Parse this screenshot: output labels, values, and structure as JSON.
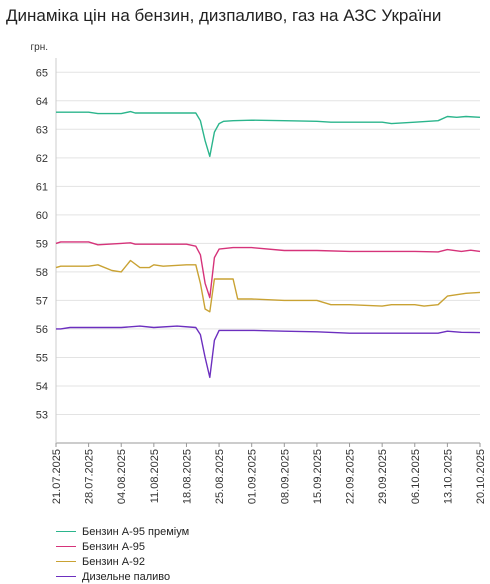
{
  "chart_data": {
    "type": "line",
    "title": "Динаміка цін на бензин, дизпаливо, газ на АЗС України",
    "ylabel": "грн.",
    "ylim": [
      52,
      65.5
    ],
    "yticks": [
      53,
      54,
      55,
      56,
      57,
      58,
      59,
      60,
      61,
      62,
      63,
      64,
      65
    ],
    "x_tick_labels": [
      "21.07.2025",
      "28.07.2025",
      "04.08.2025",
      "11.08.2025",
      "18.08.2025",
      "25.08.2025",
      "01.09.2025",
      "08.09.2025",
      "15.09.2025",
      "22.09.2025",
      "29.09.2025",
      "06.10.2025",
      "13.10.2025",
      "20.10.2025"
    ],
    "x_start": "21.07.2025",
    "x_end": "20.10.2025",
    "grid": "horizontal",
    "legend_position": "bottom-left",
    "series": [
      {
        "name": "Бензин А-95 преміум",
        "color": "#2bb58c",
        "points": [
          [
            "21.07.2025",
            63.6
          ],
          [
            "28.07.2025",
            63.6
          ],
          [
            "30.07.2025",
            63.55
          ],
          [
            "04.08.2025",
            63.55
          ],
          [
            "06.08.2025",
            63.62
          ],
          [
            "07.08.2025",
            63.57
          ],
          [
            "11.08.2025",
            63.57
          ],
          [
            "20.08.2025",
            63.57
          ],
          [
            "21.08.2025",
            63.3
          ],
          [
            "22.08.2025",
            62.6
          ],
          [
            "23.08.2025",
            62.05
          ],
          [
            "24.08.2025",
            62.9
          ],
          [
            "25.08.2025",
            63.2
          ],
          [
            "26.08.2025",
            63.28
          ],
          [
            "28.08.2025",
            63.3
          ],
          [
            "01.09.2025",
            63.32
          ],
          [
            "08.09.2025",
            63.3
          ],
          [
            "15.09.2025",
            63.28
          ],
          [
            "18.09.2025",
            63.25
          ],
          [
            "29.09.2025",
            63.25
          ],
          [
            "01.10.2025",
            63.2
          ],
          [
            "06.10.2025",
            63.25
          ],
          [
            "11.10.2025",
            63.3
          ],
          [
            "13.10.2025",
            63.45
          ],
          [
            "15.10.2025",
            63.42
          ],
          [
            "17.10.2025",
            63.45
          ],
          [
            "20.10.2025",
            63.42
          ]
        ]
      },
      {
        "name": "Бензин А-95",
        "color": "#d6337a",
        "points": [
          [
            "21.07.2025",
            59.0
          ],
          [
            "22.07.2025",
            59.05
          ],
          [
            "28.07.2025",
            59.05
          ],
          [
            "30.07.2025",
            58.95
          ],
          [
            "04.08.2025",
            59.0
          ],
          [
            "06.08.2025",
            59.02
          ],
          [
            "07.08.2025",
            58.97
          ],
          [
            "18.08.2025",
            58.97
          ],
          [
            "20.08.2025",
            58.9
          ],
          [
            "21.08.2025",
            58.6
          ],
          [
            "22.08.2025",
            57.6
          ],
          [
            "23.08.2025",
            57.1
          ],
          [
            "24.08.2025",
            58.5
          ],
          [
            "25.08.2025",
            58.8
          ],
          [
            "28.08.2025",
            58.85
          ],
          [
            "01.09.2025",
            58.85
          ],
          [
            "08.09.2025",
            58.75
          ],
          [
            "15.09.2025",
            58.75
          ],
          [
            "22.09.2025",
            58.72
          ],
          [
            "06.10.2025",
            58.72
          ],
          [
            "11.10.2025",
            58.7
          ],
          [
            "13.10.2025",
            58.78
          ],
          [
            "16.10.2025",
            58.72
          ],
          [
            "18.10.2025",
            58.76
          ],
          [
            "20.10.2025",
            58.72
          ]
        ]
      },
      {
        "name": "Бензин А-92",
        "color": "#c9a233",
        "points": [
          [
            "21.07.2025",
            58.15
          ],
          [
            "22.07.2025",
            58.2
          ],
          [
            "28.07.2025",
            58.2
          ],
          [
            "30.07.2025",
            58.25
          ],
          [
            "02.08.2025",
            58.05
          ],
          [
            "04.08.2025",
            58.0
          ],
          [
            "06.08.2025",
            58.4
          ],
          [
            "08.08.2025",
            58.15
          ],
          [
            "10.08.2025",
            58.15
          ],
          [
            "11.08.2025",
            58.25
          ],
          [
            "13.08.2025",
            58.2
          ],
          [
            "18.08.2025",
            58.25
          ],
          [
            "20.08.2025",
            58.25
          ],
          [
            "21.08.2025",
            57.6
          ],
          [
            "22.08.2025",
            56.7
          ],
          [
            "23.08.2025",
            56.6
          ],
          [
            "24.08.2025",
            57.75
          ],
          [
            "28.08.2025",
            57.75
          ],
          [
            "29.08.2025",
            57.05
          ],
          [
            "01.09.2025",
            57.05
          ],
          [
            "08.09.2025",
            57.0
          ],
          [
            "15.09.2025",
            57.0
          ],
          [
            "18.09.2025",
            56.85
          ],
          [
            "22.09.2025",
            56.85
          ],
          [
            "29.09.2025",
            56.8
          ],
          [
            "01.10.2025",
            56.85
          ],
          [
            "06.10.2025",
            56.85
          ],
          [
            "08.10.2025",
            56.8
          ],
          [
            "11.10.2025",
            56.85
          ],
          [
            "13.10.2025",
            57.15
          ],
          [
            "17.10.2025",
            57.25
          ],
          [
            "20.10.2025",
            57.28
          ]
        ]
      },
      {
        "name": "Дизельне паливо",
        "color": "#6c2fbf",
        "points": [
          [
            "21.07.2025",
            56.0
          ],
          [
            "22.07.2025",
            56.0
          ],
          [
            "24.07.2025",
            56.05
          ],
          [
            "04.08.2025",
            56.05
          ],
          [
            "08.08.2025",
            56.1
          ],
          [
            "11.08.2025",
            56.05
          ],
          [
            "16.08.2025",
            56.1
          ],
          [
            "20.08.2025",
            56.05
          ],
          [
            "21.08.2025",
            55.8
          ],
          [
            "22.08.2025",
            55.0
          ],
          [
            "23.08.2025",
            54.3
          ],
          [
            "24.08.2025",
            55.6
          ],
          [
            "25.08.2025",
            55.95
          ],
          [
            "01.09.2025",
            55.95
          ],
          [
            "08.09.2025",
            55.92
          ],
          [
            "15.09.2025",
            55.9
          ],
          [
            "22.09.2025",
            55.85
          ],
          [
            "06.10.2025",
            55.85
          ],
          [
            "11.10.2025",
            55.85
          ],
          [
            "13.10.2025",
            55.92
          ],
          [
            "16.10.2025",
            55.88
          ],
          [
            "20.10.2025",
            55.87
          ]
        ]
      }
    ]
  }
}
